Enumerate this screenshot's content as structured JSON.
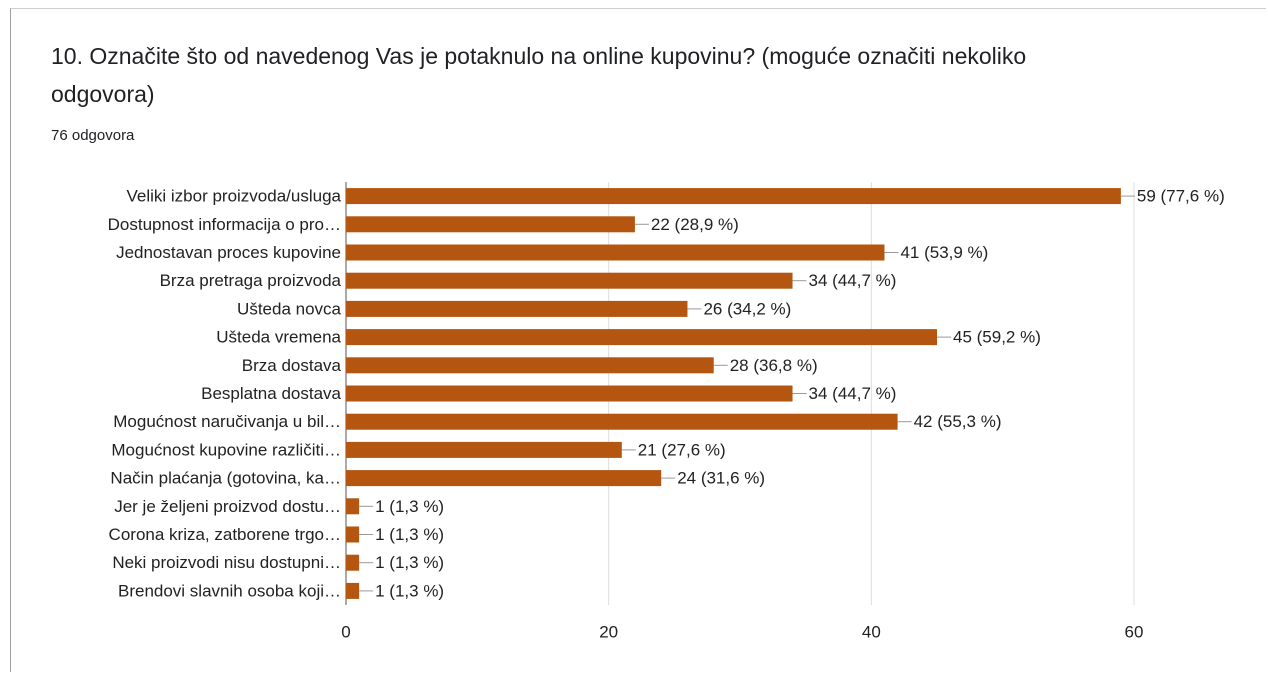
{
  "chart_data": {
    "type": "bar",
    "orientation": "horizontal",
    "title": "10. Označite što od navedenog Vas je potaknulo na online kupovinu? (moguće označiti nekoliko odgovora)",
    "subtitle": "76 odgovora",
    "categories": [
      "Veliki izbor proizvoda/usluga",
      "Dostupnost informacija o pro…",
      "Jednostavan proces kupovine",
      "Brza pretraga proizvoda",
      "Ušteda novca",
      "Ušteda vremena",
      "Brza dostava",
      "Besplatna dostava",
      "Mogućnost naručivanja u bil…",
      "Mogućnost kupovine različiti…",
      "Način plaćanja (gotovina, ka…",
      "Jer je željeni proizvod dostu…",
      "Corona kriza, zatborene trgo…",
      "Neki proizvodi nisu dostupni…",
      "Brendovi slavnih osoba koji…"
    ],
    "values": [
      59,
      22,
      41,
      34,
      26,
      45,
      28,
      34,
      42,
      21,
      24,
      1,
      1,
      1,
      1
    ],
    "value_labels": [
      "59 (77,6 %)",
      "22 (28,9 %)",
      "41 (53,9 %)",
      "34 (44,7 %)",
      "26 (34,2 %)",
      "45 (59,2 %)",
      "28 (36,8 %)",
      "34 (44,7 %)",
      "42 (55,3 %)",
      "21 (27,6 %)",
      "24 (31,6 %)",
      "1 (1,3 %)",
      "1 (1,3 %)",
      "1 (1,3 %)",
      "1 (1,3 %)"
    ],
    "color": "#b4560f",
    "xlim": [
      0,
      60
    ],
    "xticks": [
      0,
      20,
      40,
      60
    ],
    "grid": true
  }
}
